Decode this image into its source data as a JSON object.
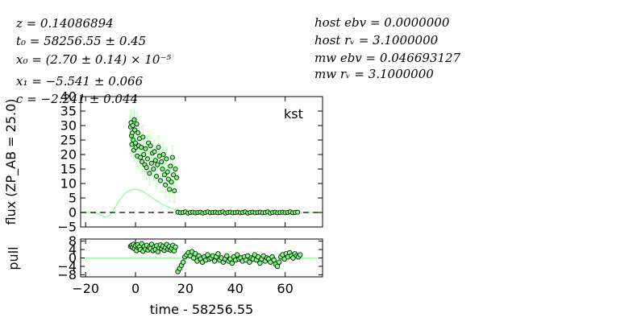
{
  "info": {
    "left": [
      "z = 0.14086894",
      "t₀ = 58256.55 ± 0.45",
      "x₀ = (2.70 ± 0.14) × 10⁻⁵",
      "x₁ = −5.541 ± 0.066",
      "c = −2.241 ± 0.044"
    ],
    "right": [
      "host ebv = 0.0000000",
      "host rᵥ = 3.1000000",
      "mw ebv = 0.046693127",
      "mw rᵥ = 3.1000000"
    ]
  },
  "colors": {
    "data_fill": "#7dff7d",
    "errorbar": "#c6ffc6",
    "model": "#90ff90",
    "axis": "#000000"
  },
  "chart_data": [
    {
      "type": "scatter",
      "name": "flux-panel",
      "legend": "kst",
      "xlabel": "",
      "ylabel": "flux (ZP_AB = 25.0)",
      "xlim": [
        -22,
        75
      ],
      "ylim": [
        -5,
        40
      ],
      "x_ticks": [],
      "y_ticks": [
        -5,
        0,
        5,
        10,
        15,
        20,
        25,
        30,
        35,
        40
      ],
      "y_tick_labels": [
        "−5",
        "0",
        "5",
        "10",
        "15",
        "20",
        "25",
        "30",
        "35",
        "40"
      ],
      "zero_line": true,
      "points": [
        {
          "x": -2.0,
          "y": 29.5,
          "err": 4.0
        },
        {
          "x": -1.8,
          "y": 31.0,
          "err": 4.0
        },
        {
          "x": -1.6,
          "y": 26.5,
          "err": 4.0
        },
        {
          "x": -1.5,
          "y": 23.5,
          "err": 4.0
        },
        {
          "x": -1.3,
          "y": 27.5,
          "err": 4.0
        },
        {
          "x": -1.1,
          "y": 30.0,
          "err": 4.0
        },
        {
          "x": -0.9,
          "y": 25.0,
          "err": 4.0
        },
        {
          "x": -0.7,
          "y": 21.5,
          "err": 4.0
        },
        {
          "x": -0.5,
          "y": 32.0,
          "err": 4.0
        },
        {
          "x": -0.3,
          "y": 28.5,
          "err": 4.0
        },
        {
          "x": 0.0,
          "y": 24.0,
          "err": 4.0
        },
        {
          "x": 0.2,
          "y": 22.5,
          "err": 4.0
        },
        {
          "x": 0.5,
          "y": 30.5,
          "err": 4.0
        },
        {
          "x": 0.7,
          "y": 19.5,
          "err": 4.0
        },
        {
          "x": 1.0,
          "y": 27.5,
          "err": 4.0
        },
        {
          "x": 1.3,
          "y": 23.0,
          "err": 4.0
        },
        {
          "x": 1.6,
          "y": 25.5,
          "err": 4.0
        },
        {
          "x": 2.0,
          "y": 19.0,
          "err": 4.0
        },
        {
          "x": 2.3,
          "y": 22.5,
          "err": 4.0
        },
        {
          "x": 2.6,
          "y": 17.5,
          "err": 4.0
        },
        {
          "x": 3.0,
          "y": 26.0,
          "err": 4.0
        },
        {
          "x": 3.3,
          "y": 20.0,
          "err": 4.0
        },
        {
          "x": 3.7,
          "y": 16.5,
          "err": 4.0
        },
        {
          "x": 4.0,
          "y": 22.0,
          "err": 4.0
        },
        {
          "x": 4.4,
          "y": 15.5,
          "err": 4.0
        },
        {
          "x": 4.8,
          "y": 18.5,
          "err": 4.0
        },
        {
          "x": 5.2,
          "y": 24.0,
          "err": 4.0
        },
        {
          "x": 5.6,
          "y": 13.5,
          "err": 4.0
        },
        {
          "x": 6.0,
          "y": 23.0,
          "err": 4.0
        },
        {
          "x": 6.4,
          "y": 17.0,
          "err": 4.0
        },
        {
          "x": 6.8,
          "y": 20.5,
          "err": 4.0
        },
        {
          "x": 7.2,
          "y": 15.0,
          "err": 4.0
        },
        {
          "x": 7.6,
          "y": 21.0,
          "err": 4.0
        },
        {
          "x": 8.0,
          "y": 18.0,
          "err": 4.0
        },
        {
          "x": 8.4,
          "y": 12.5,
          "err": 4.0
        },
        {
          "x": 8.8,
          "y": 16.5,
          "err": 4.0
        },
        {
          "x": 9.2,
          "y": 22.5,
          "err": 4.0
        },
        {
          "x": 9.6,
          "y": 19.5,
          "err": 4.0
        },
        {
          "x": 10.0,
          "y": 11.0,
          "err": 4.0
        },
        {
          "x": 10.4,
          "y": 17.5,
          "err": 4.0
        },
        {
          "x": 10.8,
          "y": 15.0,
          "err": 4.0
        },
        {
          "x": 11.2,
          "y": 20.0,
          "err": 4.0
        },
        {
          "x": 11.6,
          "y": 13.0,
          "err": 4.0
        },
        {
          "x": 12.0,
          "y": 9.5,
          "err": 4.0
        },
        {
          "x": 12.4,
          "y": 18.5,
          "err": 4.0
        },
        {
          "x": 12.8,
          "y": 14.0,
          "err": 4.0
        },
        {
          "x": 13.2,
          "y": 11.5,
          "err": 4.0
        },
        {
          "x": 13.6,
          "y": 8.0,
          "err": 4.0
        },
        {
          "x": 14.0,
          "y": 16.0,
          "err": 4.0
        },
        {
          "x": 14.4,
          "y": 10.5,
          "err": 4.0
        },
        {
          "x": 14.8,
          "y": 19.0,
          "err": 4.0
        },
        {
          "x": 15.2,
          "y": 13.0,
          "err": 4.0
        },
        {
          "x": 15.6,
          "y": 7.5,
          "err": 4.0
        },
        {
          "x": 16.0,
          "y": 15.0,
          "err": 4.0
        },
        {
          "x": 16.5,
          "y": 12.0,
          "err": 4.0
        },
        {
          "x": 17.0,
          "y": 0.1,
          "err": 0.3
        },
        {
          "x": 18.0,
          "y": -0.1,
          "err": 0.3
        },
        {
          "x": 19.0,
          "y": 0.0,
          "err": 0.3
        },
        {
          "x": 20.0,
          "y": 0.2,
          "err": 0.3
        },
        {
          "x": 21.0,
          "y": -0.2,
          "err": 0.3
        },
        {
          "x": 22.0,
          "y": 0.0,
          "err": 0.3
        },
        {
          "x": 23.0,
          "y": 0.1,
          "err": 0.3
        },
        {
          "x": 24.0,
          "y": -0.1,
          "err": 0.3
        },
        {
          "x": 25.0,
          "y": 0.0,
          "err": 0.3
        },
        {
          "x": 26.0,
          "y": 0.1,
          "err": 0.3
        },
        {
          "x": 27.0,
          "y": -0.2,
          "err": 0.3
        },
        {
          "x": 28.0,
          "y": 0.0,
          "err": 0.3
        },
        {
          "x": 29.0,
          "y": 0.2,
          "err": 0.3
        },
        {
          "x": 30.0,
          "y": -0.1,
          "err": 0.3
        },
        {
          "x": 31.0,
          "y": 0.0,
          "err": 0.3
        },
        {
          "x": 32.0,
          "y": 0.1,
          "err": 0.3
        },
        {
          "x": 33.0,
          "y": -0.1,
          "err": 0.3
        },
        {
          "x": 34.0,
          "y": 0.0,
          "err": 0.3
        },
        {
          "x": 35.0,
          "y": 0.2,
          "err": 0.3
        },
        {
          "x": 36.0,
          "y": -0.2,
          "err": 0.3
        },
        {
          "x": 37.0,
          "y": 0.0,
          "err": 0.3
        },
        {
          "x": 38.0,
          "y": 0.1,
          "err": 0.3
        },
        {
          "x": 39.0,
          "y": -0.1,
          "err": 0.3
        },
        {
          "x": 40.0,
          "y": 0.0,
          "err": 0.3
        },
        {
          "x": 41.0,
          "y": 0.1,
          "err": 0.3
        },
        {
          "x": 42.0,
          "y": -0.1,
          "err": 0.3
        },
        {
          "x": 43.0,
          "y": 0.0,
          "err": 0.3
        },
        {
          "x": 44.0,
          "y": 0.2,
          "err": 0.3
        },
        {
          "x": 45.0,
          "y": -0.2,
          "err": 0.3
        },
        {
          "x": 46.0,
          "y": 0.0,
          "err": 0.3
        },
        {
          "x": 47.0,
          "y": 0.1,
          "err": 0.3
        },
        {
          "x": 48.0,
          "y": -0.1,
          "err": 0.3
        },
        {
          "x": 49.0,
          "y": 0.0,
          "err": 0.3
        },
        {
          "x": 50.0,
          "y": 0.1,
          "err": 0.3
        },
        {
          "x": 51.0,
          "y": -0.1,
          "err": 0.3
        },
        {
          "x": 52.0,
          "y": 0.0,
          "err": 0.3
        },
        {
          "x": 53.0,
          "y": 0.2,
          "err": 0.3
        },
        {
          "x": 54.0,
          "y": -0.2,
          "err": 0.3
        },
        {
          "x": 55.0,
          "y": 0.0,
          "err": 0.3
        },
        {
          "x": 56.0,
          "y": 0.1,
          "err": 0.3
        },
        {
          "x": 57.0,
          "y": -0.1,
          "err": 0.3
        },
        {
          "x": 58.0,
          "y": 0.0,
          "err": 0.3
        },
        {
          "x": 59.0,
          "y": 0.1,
          "err": 0.3
        },
        {
          "x": 60.0,
          "y": -0.1,
          "err": 0.3
        },
        {
          "x": 61.0,
          "y": 0.0,
          "err": 0.3
        },
        {
          "x": 62.0,
          "y": 0.2,
          "err": 0.3
        },
        {
          "x": 63.0,
          "y": -0.1,
          "err": 0.3
        },
        {
          "x": 64.0,
          "y": 0.0,
          "err": 0.3
        },
        {
          "x": 65.0,
          "y": 0.1,
          "err": 0.3
        }
      ],
      "model": {
        "x": [
          -22,
          -19,
          -16,
          -14,
          -13,
          -12,
          -11,
          -10,
          -9,
          -8,
          -7,
          -6,
          -5,
          -4,
          -3,
          -2,
          -1,
          0,
          1,
          2,
          3,
          4,
          5,
          6,
          7,
          8,
          9,
          10,
          11,
          12,
          13,
          14,
          15,
          16,
          17,
          18,
          19,
          20,
          22,
          25,
          30,
          40,
          50,
          60,
          75
        ],
        "y": [
          0,
          0,
          -0.2,
          -0.8,
          -1.3,
          -1.6,
          -1.4,
          -0.6,
          0.6,
          2.0,
          3.4,
          4.7,
          5.8,
          6.7,
          7.3,
          7.7,
          7.9,
          7.95,
          7.85,
          7.6,
          7.2,
          6.7,
          6.1,
          5.5,
          4.9,
          4.3,
          3.7,
          3.2,
          2.7,
          2.3,
          1.9,
          1.6,
          1.3,
          1.0,
          0.8,
          0.6,
          0.45,
          0.35,
          0.2,
          0.1,
          0.05,
          0,
          0,
          0,
          0
        ]
      }
    },
    {
      "type": "scatter",
      "name": "pull-panel",
      "xlabel": "time - 58256.55",
      "ylabel": "pull",
      "xlim": [
        -22,
        75
      ],
      "ylim": [
        -9,
        9
      ],
      "x_ticks": [
        -20,
        0,
        20,
        40,
        60
      ],
      "x_tick_labels": [
        "−20",
        "0",
        "20",
        "40",
        "60"
      ],
      "y_ticks": [
        -8,
        -4,
        0,
        4,
        8
      ],
      "y_tick_labels": [
        "−8",
        "−4",
        "0",
        "4",
        "8"
      ],
      "zero_line": true,
      "points": [
        {
          "x": -2.0,
          "y": 5.5
        },
        {
          "x": -1.6,
          "y": 6.0
        },
        {
          "x": -1.2,
          "y": 5.0
        },
        {
          "x": -0.8,
          "y": 6.5
        },
        {
          "x": -0.4,
          "y": 4.5
        },
        {
          "x": 0.0,
          "y": 5.8
        },
        {
          "x": 0.4,
          "y": 3.5
        },
        {
          "x": 0.8,
          "y": 6.2
        },
        {
          "x": 1.2,
          "y": 4.8
        },
        {
          "x": 1.6,
          "y": 5.2
        },
        {
          "x": 2.0,
          "y": 4.0
        },
        {
          "x": 2.5,
          "y": 6.8
        },
        {
          "x": 3.0,
          "y": 3.2
        },
        {
          "x": 3.5,
          "y": 5.5
        },
        {
          "x": 4.0,
          "y": 4.2
        },
        {
          "x": 4.5,
          "y": 6.0
        },
        {
          "x": 5.0,
          "y": 3.8
        },
        {
          "x": 5.5,
          "y": 5.0
        },
        {
          "x": 6.0,
          "y": 4.5
        },
        {
          "x": 6.5,
          "y": 6.5
        },
        {
          "x": 7.0,
          "y": 3.5
        },
        {
          "x": 7.5,
          "y": 5.2
        },
        {
          "x": 8.0,
          "y": 4.0
        },
        {
          "x": 8.5,
          "y": 5.8
        },
        {
          "x": 9.0,
          "y": 3.0
        },
        {
          "x": 9.5,
          "y": 4.8
        },
        {
          "x": 10.0,
          "y": 6.2
        },
        {
          "x": 10.5,
          "y": 4.4
        },
        {
          "x": 11.0,
          "y": 5.6
        },
        {
          "x": 11.5,
          "y": 3.6
        },
        {
          "x": 12.0,
          "y": 5.0
        },
        {
          "x": 12.5,
          "y": 6.4
        },
        {
          "x": 13.0,
          "y": 4.2
        },
        {
          "x": 13.5,
          "y": 5.4
        },
        {
          "x": 14.0,
          "y": 3.8
        },
        {
          "x": 14.5,
          "y": 4.6
        },
        {
          "x": 15.0,
          "y": 6.0
        },
        {
          "x": 15.5,
          "y": 3.4
        },
        {
          "x": 16.0,
          "y": 5.2
        },
        {
          "x": 17.0,
          "y": -6.5
        },
        {
          "x": 17.7,
          "y": -5.0
        },
        {
          "x": 18.4,
          "y": -3.5
        },
        {
          "x": 19.1,
          "y": -2.0
        },
        {
          "x": 19.8,
          "y": 0.5
        },
        {
          "x": 20.5,
          "y": 1.5
        },
        {
          "x": 21.2,
          "y": 2.5
        },
        {
          "x": 21.9,
          "y": 1.0
        },
        {
          "x": 22.6,
          "y": 3.0
        },
        {
          "x": 23.3,
          "y": 0.0
        },
        {
          "x": 24.0,
          "y": 2.0
        },
        {
          "x": 24.7,
          "y": -1.5
        },
        {
          "x": 25.4,
          "y": 1.0
        },
        {
          "x": 26.1,
          "y": -0.5
        },
        {
          "x": 26.8,
          "y": -2.0
        },
        {
          "x": 27.5,
          "y": 0.5
        },
        {
          "x": 28.2,
          "y": -1.0
        },
        {
          "x": 28.9,
          "y": 1.5
        },
        {
          "x": 29.6,
          "y": -0.5
        },
        {
          "x": 30.3,
          "y": 0.0
        },
        {
          "x": 31.0,
          "y": 1.0
        },
        {
          "x": 31.7,
          "y": -1.5
        },
        {
          "x": 32.4,
          "y": 0.5
        },
        {
          "x": 33.1,
          "y": 2.0
        },
        {
          "x": 33.8,
          "y": -1.0
        },
        {
          "x": 34.5,
          "y": 0.0
        },
        {
          "x": 35.2,
          "y": -2.0
        },
        {
          "x": 35.9,
          "y": -0.5
        },
        {
          "x": 36.6,
          "y": 1.0
        },
        {
          "x": 37.3,
          "y": -1.5
        },
        {
          "x": 38.0,
          "y": -0.5
        },
        {
          "x": 38.7,
          "y": -2.5
        },
        {
          "x": 39.4,
          "y": 0.5
        },
        {
          "x": 40.1,
          "y": -1.0
        },
        {
          "x": 40.8,
          "y": 1.5
        },
        {
          "x": 41.5,
          "y": -0.5
        },
        {
          "x": 42.2,
          "y": 0.0
        },
        {
          "x": 42.9,
          "y": -1.5
        },
        {
          "x": 43.6,
          "y": 0.5
        },
        {
          "x": 44.3,
          "y": -1.0
        },
        {
          "x": 45.0,
          "y": 1.0
        },
        {
          "x": 45.7,
          "y": -2.0
        },
        {
          "x": 46.4,
          "y": 0.0
        },
        {
          "x": 47.1,
          "y": -0.5
        },
        {
          "x": 47.8,
          "y": 1.5
        },
        {
          "x": 48.5,
          "y": -1.0
        },
        {
          "x": 49.2,
          "y": 0.5
        },
        {
          "x": 49.9,
          "y": -2.5
        },
        {
          "x": 50.6,
          "y": -0.5
        },
        {
          "x": 51.3,
          "y": 1.0
        },
        {
          "x": 52.0,
          "y": -1.5
        },
        {
          "x": 52.7,
          "y": 0.0
        },
        {
          "x": 53.4,
          "y": -0.5
        },
        {
          "x": 54.1,
          "y": -2.0
        },
        {
          "x": 54.8,
          "y": 0.5
        },
        {
          "x": 55.5,
          "y": -1.0
        },
        {
          "x": 56.2,
          "y": -3.0
        },
        {
          "x": 56.9,
          "y": -4.0
        },
        {
          "x": 57.6,
          "y": -2.0
        },
        {
          "x": 58.3,
          "y": 0.5
        },
        {
          "x": 59.0,
          "y": 1.5
        },
        {
          "x": 59.7,
          "y": -0.5
        },
        {
          "x": 60.4,
          "y": 2.0
        },
        {
          "x": 61.1,
          "y": 0.5
        },
        {
          "x": 61.8,
          "y": 2.5
        },
        {
          "x": 62.5,
          "y": 1.0
        },
        {
          "x": 63.2,
          "y": 0.0
        },
        {
          "x": 63.9,
          "y": 2.0
        },
        {
          "x": 64.6,
          "y": 1.0
        },
        {
          "x": 65.3,
          "y": 0.5
        },
        {
          "x": 66.0,
          "y": 1.5
        }
      ]
    }
  ]
}
